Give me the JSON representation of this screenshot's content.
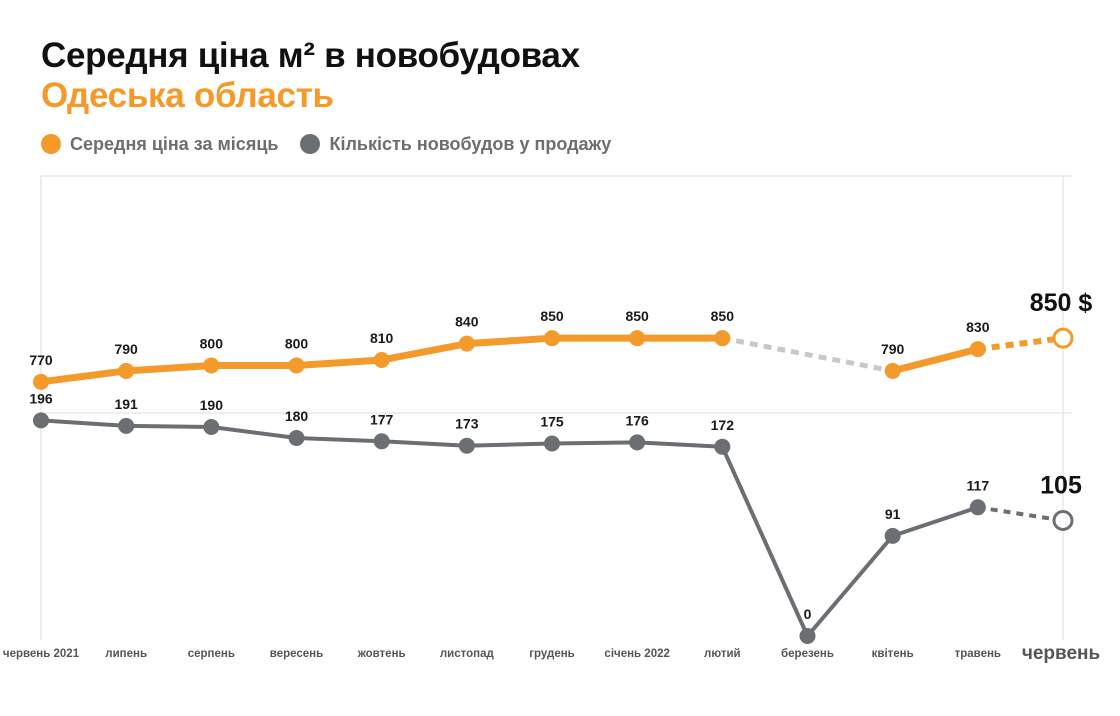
{
  "header": {
    "title": "Середня ціна м² в новобудовах",
    "subtitle": "Одеська область"
  },
  "colors": {
    "price": "#f39a2b",
    "count": "#6b6e72",
    "gap": "#c6c9cc",
    "grid": "#dddddd"
  },
  "legend": [
    {
      "label": "Середня ціна за місяць",
      "color": "#f39a2b"
    },
    {
      "label": "Кількість новобудов у продажу",
      "color": "#6b6e72"
    }
  ],
  "chart_data": {
    "type": "line",
    "categories": [
      "червень 2021",
      "липень",
      "серпень",
      "вересень",
      "жовтень",
      "листопад",
      "грудень",
      "січень 2022",
      "лютий",
      "березень",
      "квітень",
      "травень",
      "червень"
    ],
    "highlight_index": 12,
    "series": [
      {
        "name": "Середня ціна за місяць",
        "values": [
          770,
          790,
          800,
          800,
          810,
          840,
          850,
          850,
          850,
          null,
          790,
          830,
          850
        ],
        "labels": [
          "770",
          "790",
          "800",
          "800",
          "810",
          "840",
          "850",
          "850",
          "850",
          "",
          "790",
          "830",
          "850 $"
        ],
        "color": "#f39a2b",
        "ylim": [
          700,
          920
        ]
      },
      {
        "name": "Кількість новобудов у продажу",
        "values": [
          196,
          191,
          190,
          180,
          177,
          173,
          175,
          176,
          172,
          0,
          91,
          117,
          105
        ],
        "labels": [
          "196",
          "191",
          "190",
          "180",
          "177",
          "173",
          "175",
          "176",
          "172",
          "0",
          "91",
          "117",
          "105"
        ],
        "color": "#6b6e72",
        "ylim": [
          0,
          240
        ]
      }
    ],
    "grid": true,
    "legend_position": "top-left"
  }
}
